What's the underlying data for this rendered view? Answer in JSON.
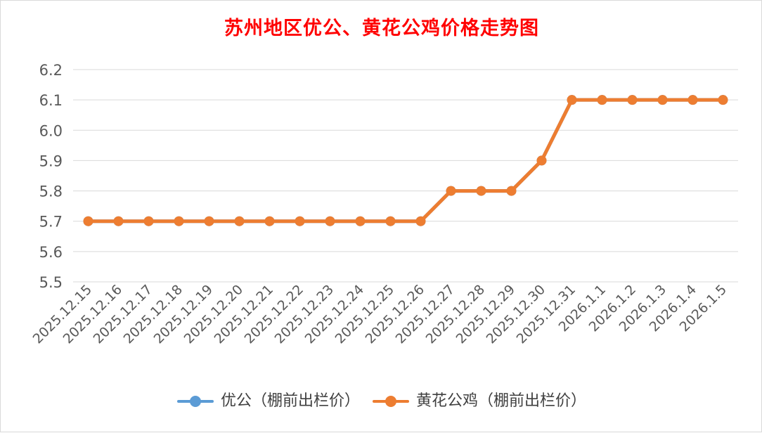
{
  "chart_data": {
    "type": "line",
    "title": "苏州地区优公、黄花公鸡价格走势图",
    "xlabel": "",
    "ylabel": "",
    "ylim": [
      5.5,
      6.2
    ],
    "yticks": [
      "5.5",
      "5.6",
      "5.7",
      "5.8",
      "5.9",
      "6.0",
      "6.1",
      "6.2"
    ],
    "grid": true,
    "legend_position": "bottom",
    "title_color": "#ff0000",
    "categories": [
      "2025.12.15",
      "2025.12.16",
      "2025.12.17",
      "2025.12.18",
      "2025.12.19",
      "2025.12.20",
      "2025.12.21",
      "2025.12.22",
      "2025.12.23",
      "2025.12.24",
      "2025.12.25",
      "2025.12.26",
      "2025.12.27",
      "2025.12.28",
      "2025.12.29",
      "2025.12.30",
      "2025.12.31",
      "2026.1.1",
      "2026.1.2",
      "2026.1.3",
      "2026.1.4",
      "2026.1.5"
    ],
    "series": [
      {
        "name": "优公（棚前出栏价）",
        "color": "#5b9bd5",
        "values": [
          5.7,
          5.7,
          5.7,
          5.7,
          5.7,
          5.7,
          5.7,
          5.7,
          5.7,
          5.7,
          5.7,
          5.7,
          5.8,
          5.8,
          5.8,
          5.9,
          6.1,
          6.1,
          6.1,
          6.1,
          6.1,
          6.1
        ]
      },
      {
        "name": "黄花公鸡（棚前出栏价）",
        "color": "#ed7d31",
        "values": [
          5.7,
          5.7,
          5.7,
          5.7,
          5.7,
          5.7,
          5.7,
          5.7,
          5.7,
          5.7,
          5.7,
          5.7,
          5.8,
          5.8,
          5.8,
          5.9,
          6.1,
          6.1,
          6.1,
          6.1,
          6.1,
          6.1
        ]
      }
    ]
  }
}
